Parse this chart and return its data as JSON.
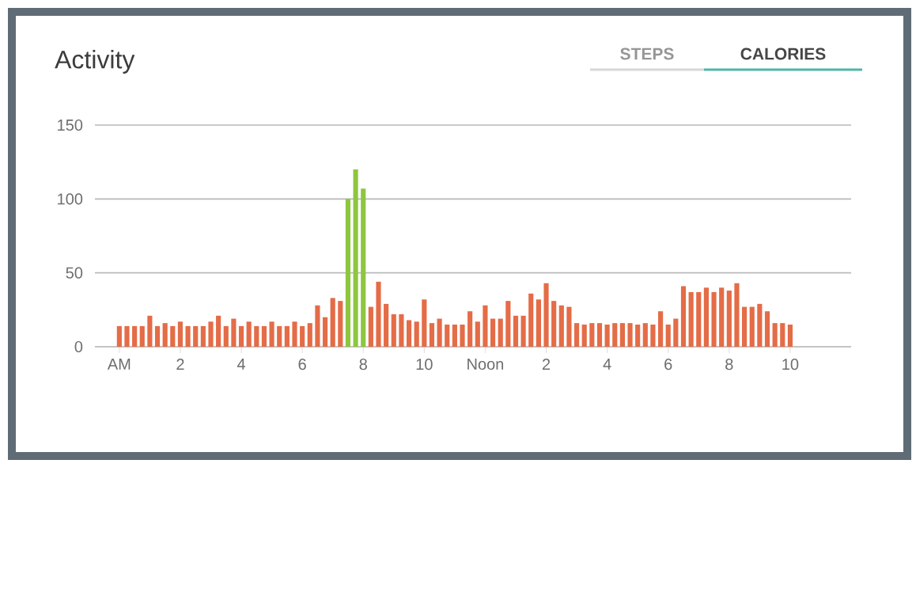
{
  "chart_data": {
    "type": "bar",
    "title": "Activity",
    "annotations": [
      "STEPS",
      "CALORIES"
    ],
    "categories": [
      "AM",
      null,
      null,
      null,
      null,
      null,
      null,
      null,
      "2",
      null,
      null,
      null,
      null,
      null,
      null,
      null,
      "4",
      null,
      null,
      null,
      null,
      null,
      null,
      null,
      "6",
      null,
      null,
      null,
      null,
      null,
      null,
      null,
      "8",
      null,
      null,
      null,
      null,
      null,
      null,
      null,
      "10",
      null,
      null,
      null,
      null,
      null,
      null,
      null,
      "Noon",
      null,
      null,
      null,
      null,
      null,
      null,
      null,
      "2",
      null,
      null,
      null,
      null,
      null,
      null,
      null,
      "4",
      null,
      null,
      null,
      null,
      null,
      null,
      null,
      "6",
      null,
      null,
      null,
      null,
      null,
      null,
      null,
      "8",
      null,
      null,
      null,
      null,
      null,
      null,
      null,
      "10"
    ],
    "values": [
      14,
      14,
      14,
      14,
      21,
      14,
      16,
      14,
      17,
      14,
      14,
      14,
      17,
      21,
      14,
      19,
      14,
      17,
      14,
      14,
      17,
      14,
      14,
      17,
      14,
      16,
      28,
      20,
      33,
      31,
      100,
      120,
      107,
      27,
      44,
      29,
      22,
      22,
      18,
      17,
      32,
      16,
      19,
      15,
      15,
      15,
      24,
      17,
      28,
      19,
      19,
      31,
      21,
      21,
      36,
      32,
      43,
      31,
      28,
      27,
      16,
      15,
      16,
      16,
      15,
      16,
      16,
      16,
      15,
      16,
      15,
      24,
      15,
      19,
      41,
      37,
      37,
      40,
      37,
      40,
      38,
      43,
      27,
      27,
      29,
      24,
      16,
      16,
      15
    ],
    "colors": [
      "#e46c47",
      "#e46c47",
      "#e46c47",
      "#e46c47",
      "#e46c47",
      "#e46c47",
      "#e46c47",
      "#e46c47",
      "#e46c47",
      "#e46c47",
      "#e46c47",
      "#e46c47",
      "#e46c47",
      "#e46c47",
      "#e46c47",
      "#e46c47",
      "#e46c47",
      "#e46c47",
      "#e46c47",
      "#e46c47",
      "#e46c47",
      "#e46c47",
      "#e46c47",
      "#e46c47",
      "#e46c47",
      "#e46c47",
      "#e46c47",
      "#e46c47",
      "#e46c47",
      "#e46c47",
      "#8dc63f",
      "#8dc63f",
      "#8dc63f",
      "#e46c47",
      "#e46c47",
      "#e46c47",
      "#e46c47",
      "#e46c47",
      "#e46c47",
      "#e46c47",
      "#e46c47",
      "#e46c47",
      "#e46c47",
      "#e46c47",
      "#e46c47",
      "#e46c47",
      "#e46c47",
      "#e46c47",
      "#e46c47",
      "#e46c47",
      "#e46c47",
      "#e46c47",
      "#e46c47",
      "#e46c47",
      "#e46c47",
      "#e46c47",
      "#e46c47",
      "#e46c47",
      "#e46c47",
      "#e46c47",
      "#e46c47",
      "#e46c47",
      "#e46c47",
      "#e46c47",
      "#e46c47",
      "#e46c47",
      "#e46c47",
      "#e46c47",
      "#e46c47",
      "#e46c47",
      "#e46c47",
      "#e46c47",
      "#e46c47",
      "#e46c47",
      "#e46c47",
      "#e46c47",
      "#e46c47",
      "#e46c47",
      "#e46c47",
      "#e46c47",
      "#e46c47",
      "#e46c47",
      "#e46c47",
      "#e46c47",
      "#e46c47",
      "#e46c47",
      "#e46c47",
      "#e46c47",
      "#e46c47"
    ],
    "ylim": [
      0,
      150
    ],
    "yticks": [
      0,
      50,
      100,
      150
    ],
    "grid": "y"
  }
}
